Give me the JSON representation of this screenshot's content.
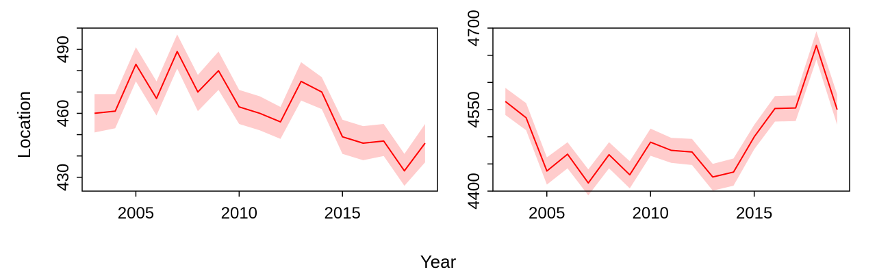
{
  "figure": {
    "ylabel": "Location",
    "xlabel": "Year"
  },
  "chart_data": [
    {
      "type": "line",
      "title": "",
      "x": [
        2003,
        2004,
        2005,
        2006,
        2007,
        2008,
        2009,
        2010,
        2011,
        2012,
        2013,
        2014,
        2015,
        2016,
        2017,
        2018,
        2019
      ],
      "series": [
        {
          "values": [
            460,
            461,
            483,
            467,
            489,
            470,
            480,
            463,
            460,
            456,
            475,
            470,
            449,
            446,
            447,
            433,
            446
          ],
          "lower": [
            451,
            453,
            475,
            459,
            481,
            461,
            471,
            455,
            452,
            448,
            466,
            462,
            441,
            438,
            440,
            426,
            437
          ],
          "upper": [
            469,
            469,
            491,
            475,
            497,
            478,
            489,
            471,
            468,
            463,
            484,
            477,
            457,
            454,
            455,
            441,
            455
          ]
        }
      ],
      "xlim": [
        2002.4,
        2019.6
      ],
      "ylim": [
        423.5,
        500
      ],
      "xticks": [
        2005,
        2010,
        2015
      ],
      "xtick_labels": [
        "2005",
        "2010",
        "2015"
      ],
      "yticks": [
        430,
        440,
        450,
        460,
        470,
        480,
        490,
        500
      ],
      "ytick_labels": [
        "430",
        "",
        "",
        "460",
        "",
        "",
        "490",
        ""
      ],
      "line_color": "#ff0000",
      "band_color": "#ffcccc",
      "grid": false
    },
    {
      "type": "line",
      "title": "",
      "x": [
        2003,
        2004,
        2005,
        2006,
        2007,
        2008,
        2009,
        2010,
        2011,
        2012,
        2013,
        2014,
        2015,
        2016,
        2017,
        2018,
        2019
      ],
      "series": [
        {
          "values": [
            4565,
            4535,
            4437,
            4468,
            4415,
            4467,
            4430,
            4490,
            4475,
            4472,
            4426,
            4435,
            4500,
            4552,
            4553,
            4668,
            4550
          ],
          "lower": [
            4540,
            4512,
            4412,
            4442,
            4392,
            4442,
            4405,
            4465,
            4452,
            4448,
            4401,
            4410,
            4477,
            4528,
            4529,
            4642,
            4522
          ],
          "upper": [
            4590,
            4562,
            4462,
            4490,
            4440,
            4490,
            4455,
            4515,
            4498,
            4496,
            4450,
            4460,
            4522,
            4575,
            4576,
            4694,
            4578
          ]
        }
      ],
      "xlim": [
        2002.4,
        2019.6
      ],
      "ylim": [
        4400,
        4700
      ],
      "xticks": [
        2005,
        2010,
        2015
      ],
      "xtick_labels": [
        "2005",
        "2010",
        "2015"
      ],
      "yticks": [
        4400,
        4450,
        4500,
        4550,
        4600,
        4650,
        4700
      ],
      "ytick_labels": [
        "4400",
        "",
        "",
        "4550",
        "",
        "",
        "4700"
      ],
      "line_color": "#ff0000",
      "band_color": "#ffcccc",
      "grid": false
    }
  ]
}
